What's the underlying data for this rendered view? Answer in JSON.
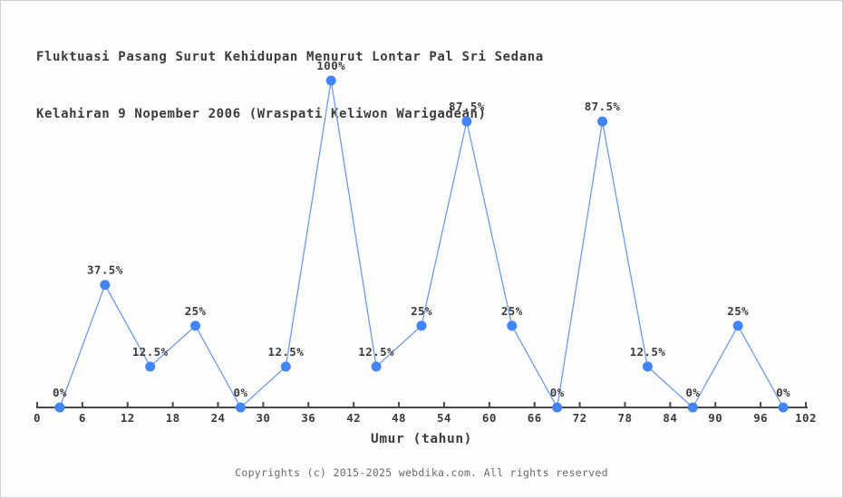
{
  "footer": "Copyrights (c) 2015-2025 webdika.com. All rights reserved",
  "chart_data": {
    "type": "line",
    "title": "Fluktuasi Pasang Surut Kehidupan Menurut Lontar Pal Sri Sedana",
    "subtitle": "Kelahiran 9 Nopember 2006 (Wraspati Keliwon Warigadean)",
    "xlabel": "Umur (tahun)",
    "ylabel": "",
    "x": [
      3,
      9,
      15,
      21,
      27,
      33,
      39,
      45,
      51,
      57,
      63,
      69,
      75,
      81,
      87,
      93,
      99
    ],
    "values": [
      0,
      37.5,
      12.5,
      25,
      0,
      12.5,
      100,
      12.5,
      25,
      87.5,
      25,
      0,
      87.5,
      12.5,
      0,
      25,
      0
    ],
    "point_labels": [
      "0%",
      "37.5%",
      "12.5%",
      "25%",
      "0%",
      "12.5%",
      "100%",
      "12.5%",
      "25%",
      "87.5%",
      "25%",
      "0%",
      "87.5%",
      "12.5%",
      "0%",
      "25%",
      "0%"
    ],
    "x_ticks": [
      0,
      6,
      12,
      18,
      24,
      30,
      36,
      42,
      48,
      54,
      60,
      66,
      72,
      78,
      84,
      90,
      96,
      102
    ],
    "xlim": [
      0,
      102
    ],
    "ylim": [
      0,
      100
    ],
    "grid": false,
    "legend_position": "none",
    "colors": {
      "marker": "#4285f4",
      "line": "#6f9bea",
      "axis": "#4a4a4a",
      "text": "#3c3c3c",
      "footer": "#6b6b6b",
      "background": "#fdfdfd"
    }
  }
}
